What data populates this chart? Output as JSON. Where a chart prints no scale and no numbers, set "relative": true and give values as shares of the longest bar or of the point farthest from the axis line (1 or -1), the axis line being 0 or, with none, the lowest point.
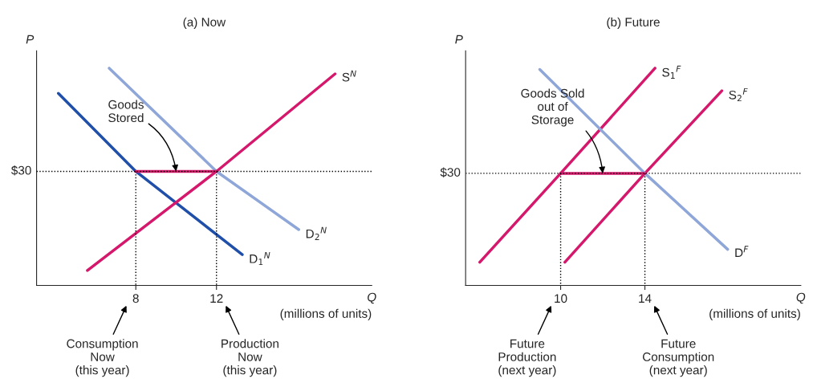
{
  "chart_data": [
    {
      "type": "line",
      "title": "(a) Now",
      "xlabel": "Q",
      "ylabel": "P",
      "relative": true,
      "xlim": [
        3.08,
        19.7
      ],
      "xticks": [
        8,
        12
      ],
      "legend": false,
      "series": [
        {
          "name": "D$_{1}$$^{N}$",
          "color": "#1f4fa8",
          "x": [
            4.16,
            8,
            13.28
          ],
          "values": [
            0.884,
            0.525,
            0.142
          ]
        },
        {
          "name": "D$_{2}$$^{N}$",
          "color": "#8ea6d8",
          "x": [
            6.68,
            12,
            16.08
          ],
          "values": [
            1.0,
            0.525,
            0.257
          ]
        },
        {
          "name": "S$^{N}$",
          "color": "#d6186c",
          "x": [
            5.6,
            12,
            17.88
          ],
          "values": [
            0.069,
            0.525,
            0.974
          ]
        },
        {
          "color": "#d6186c",
          "x": [
            8,
            12
          ],
          "values": [
            0.525,
            0.525
          ]
        },
        {
          "color": "#000000",
          "line_style": "dotted",
          "x": [
            8,
            8
          ],
          "values": [
            0.525,
            0
          ]
        },
        {
          "color": "#000000",
          "line_style": "dotted",
          "x": [
            12,
            12
          ],
          "values": [
            0.525,
            0
          ]
        }
      ],
      "ref_lines": [
        {
          "axis": "y",
          "value": 0.525,
          "color": "#000000",
          "line_style": "dotted"
        }
      ],
      "annotations": [
        "$30",
        {
          "text": "Goods\nStored",
          "x": 10,
          "y": 0.525
        },
        "Consumption\nNow\n(this year)",
        "Production\nNow\n(this year)",
        "(millions of units)"
      ]
    },
    {
      "type": "line",
      "title": "(b) Future",
      "xlabel": "Q",
      "ylabel": "P",
      "relative": true,
      "xlim": [
        5.49,
        21.4
      ],
      "xticks": [
        10,
        14
      ],
      "legend": false,
      "series": [
        {
          "name": "S$_{1}$$^{F}$",
          "color": "#d6186c",
          "x": [
            6.16,
            10,
            14.48
          ],
          "values": [
            0.107,
            0.516,
            1.0
          ]
        },
        {
          "name": "S$_{2}$$^{F}$",
          "color": "#d6186c",
          "x": [
            10.2,
            14,
            17.65
          ],
          "values": [
            0.107,
            0.516,
            0.896
          ]
        },
        {
          "name": "D$^{F}$",
          "color": "#8ea6d8",
          "x": [
            9.01,
            14,
            17.93
          ],
          "values": [
            0.994,
            0.516,
            0.166
          ]
        },
        {
          "color": "#d6186c",
          "x": [
            10,
            14
          ],
          "values": [
            0.516,
            0.516
          ]
        },
        {
          "color": "#000000",
          "line_style": "dotted",
          "x": [
            10,
            10
          ],
          "values": [
            0.516,
            0
          ]
        },
        {
          "color": "#000000",
          "line_style": "dotted",
          "x": [
            14,
            14
          ],
          "values": [
            0.516,
            0
          ]
        }
      ],
      "ref_lines": [
        {
          "axis": "y",
          "value": 0.516,
          "color": "#000000",
          "line_style": "dotted"
        }
      ],
      "annotations": [
        "$30",
        {
          "text": "Goods Sold\nout of\nStorage",
          "x": 12,
          "y": 0.516
        },
        "Future\nProduction\n(next year)",
        "Future\nConsumption\n(next year)",
        "(millions of units)"
      ]
    }
  ]
}
